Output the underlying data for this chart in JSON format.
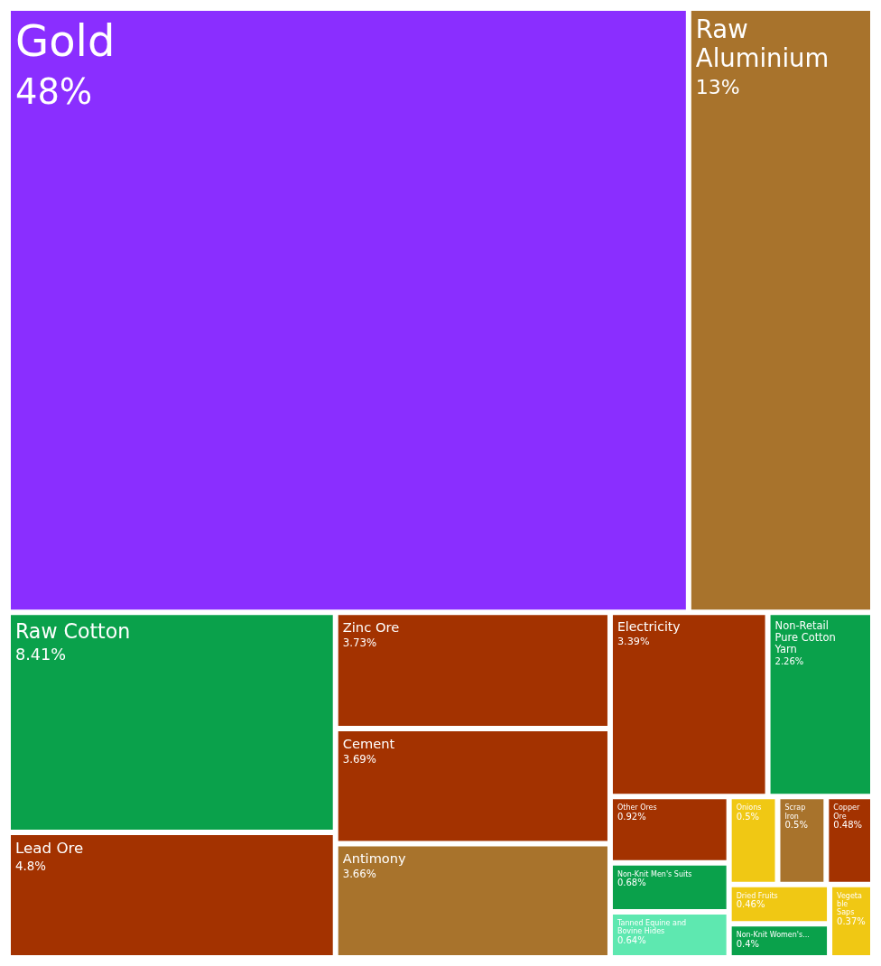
{
  "chart_data": {
    "type": "other",
    "categories": [
      "Gold",
      "Raw Aluminium",
      "Antimony",
      "Scrap Iron",
      "Lead Ore",
      "Zinc Ore",
      "Cement",
      "Electricity",
      "Other Ores",
      "Copper Ore",
      "Raw Cotton",
      "Non-Retail Pure Cotton Yarn",
      "Non-Knit Men's Suits",
      "Non-Knit Women's...",
      "Onions",
      "Dried Fruits",
      "Vegetable Saps",
      "Tanned Equine and Bovine Hides"
    ],
    "values": [
      48,
      13,
      3.66,
      0.5,
      4.8,
      3.73,
      3.69,
      3.39,
      0.92,
      0.48,
      8.41,
      2.26,
      0.68,
      0.4,
      0.5,
      0.46,
      0.37,
      0.64
    ],
    "value_labels": [
      "48%",
      "13%",
      "3.66%",
      "0.5%",
      "4.8%",
      "3.73%",
      "3.69%",
      "3.39%",
      "0.92%",
      "0.48%",
      "8.41%",
      "2.26%",
      "0.68%",
      "0.4%",
      "0.5%",
      "0.46%",
      "0.37%",
      "0.64%"
    ],
    "colors": [
      "#8a2eff",
      "#a8732c",
      "#a8732c",
      "#a8732c",
      "#a33200",
      "#a33200",
      "#a33200",
      "#a33200",
      "#a33200",
      "#a33200",
      "#0aa14b",
      "#0aa14b",
      "#0aa14b",
      "#0aa14b",
      "#f0c814",
      "#f0c814",
      "#f0c814",
      "#5ee8b0"
    ]
  }
}
